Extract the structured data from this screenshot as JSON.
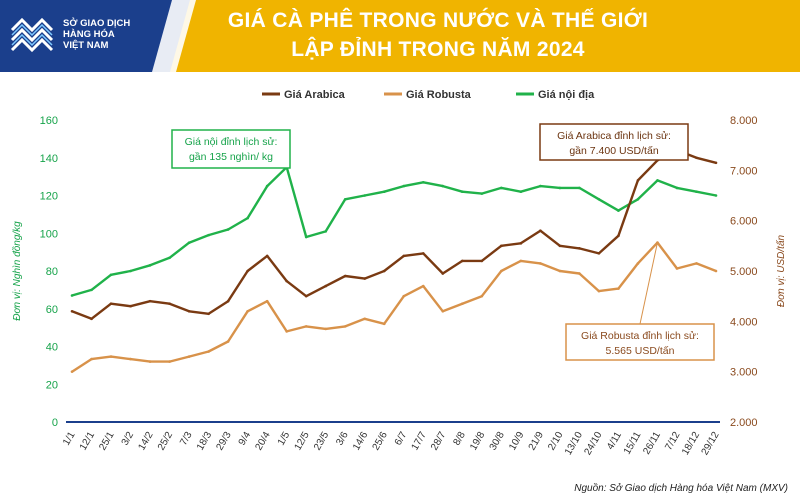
{
  "header": {
    "title_line1": "GIÁ CÀ PHÊ TRONG NƯỚC VÀ THẾ GIỚI",
    "title_line2": "LẬP ĐỈNH TRONG NĂM 2024",
    "logo_line1": "SỞ GIAO DỊCH",
    "logo_line2": "HÀNG HÓA",
    "logo_line3": "VIỆT NAM"
  },
  "colors": {
    "banner_yellow": "#f0b400",
    "banner_blue": "#1b3f8c",
    "arabica": "#7a3a12",
    "robusta": "#d8924a",
    "domestic": "#20b24a",
    "axis_left": "#16a34a",
    "axis_right": "#8a4a1e"
  },
  "chart_data": {
    "type": "line",
    "legend": [
      "Giá Arabica",
      "Giá Robusta",
      "Giá nội địa"
    ],
    "legend_position": "top-center",
    "ylabel_left": "Đơn vị: Nghìn đồng/kg",
    "ylabel_right": "Đơn vị: USD/tấn",
    "ylim_left": [
      0,
      160
    ],
    "ylim_right": [
      2000,
      8000
    ],
    "yticks_left": [
      "0",
      "20",
      "40",
      "60",
      "80",
      "100",
      "120",
      "140",
      "160"
    ],
    "yticks_right": [
      "2.000",
      "3.000",
      "4.000",
      "5.000",
      "6.000",
      "7.000",
      "8.000"
    ],
    "x_ticks": [
      "1/1",
      "12/1",
      "25/1",
      "3/2",
      "14/2",
      "25/2",
      "7/3",
      "18/3",
      "29/3",
      "9/4",
      "20/4",
      "1/5",
      "12/5",
      "23/5",
      "3/6",
      "14/6",
      "25/6",
      "6/7",
      "17/7",
      "28/7",
      "8/8",
      "19/8",
      "30/8",
      "10/9",
      "21/9",
      "2/10",
      "13/10",
      "24/10",
      "4/11",
      "15/11",
      "26/11",
      "7/12",
      "18/12",
      "29/12"
    ],
    "grid": false,
    "series": [
      {
        "name": "Giá nội địa",
        "axis": "left",
        "values": [
          67,
          70,
          78,
          80,
          83,
          87,
          95,
          99,
          102,
          108,
          125,
          135,
          98,
          101,
          118,
          120,
          122,
          125,
          127,
          125,
          122,
          121,
          124,
          122,
          125,
          124,
          124,
          118,
          112,
          118,
          128,
          124,
          122,
          120
        ]
      },
      {
        "name": "Giá Arabica",
        "axis": "right",
        "values": [
          4200,
          4050,
          4350,
          4300,
          4400,
          4350,
          4200,
          4150,
          4400,
          5000,
          5300,
          4800,
          4500,
          4700,
          4900,
          4850,
          5000,
          5300,
          5350,
          4950,
          5200,
          5200,
          5500,
          5550,
          5800,
          5500,
          5450,
          5350,
          5700,
          6800,
          7200,
          7400,
          7250,
          7150
        ]
      },
      {
        "name": "Giá Robusta",
        "axis": "right",
        "values": [
          3000,
          3250,
          3300,
          3250,
          3200,
          3200,
          3300,
          3400,
          3600,
          4200,
          4400,
          3800,
          3900,
          3850,
          3900,
          4050,
          3950,
          4500,
          4700,
          4200,
          4350,
          4500,
          5000,
          5200,
          5150,
          5000,
          4950,
          4600,
          4650,
          5150,
          5565,
          5050,
          5150,
          5000
        ]
      }
    ],
    "annotations": [
      {
        "series": "Giá nội địa",
        "index": 11,
        "text_line1": "Giá  nội đỉnh lịch sử:",
        "text_line2": "gần 135 nghìn/ kg"
      },
      {
        "series": "Giá Arabica",
        "index": 31,
        "text_line1": "Giá Arabica đỉnh lịch sử:",
        "text_line2": "gần 7.400 USD/tấn"
      },
      {
        "series": "Giá Robusta",
        "index": 30,
        "text_line1": "Giá Robusta đỉnh lịch sử:",
        "text_line2": "5.565  USD/tấn"
      }
    ]
  },
  "footer": {
    "source": "Nguồn: Sở Giao dịch Hàng hóa Việt Nam (MXV)"
  }
}
